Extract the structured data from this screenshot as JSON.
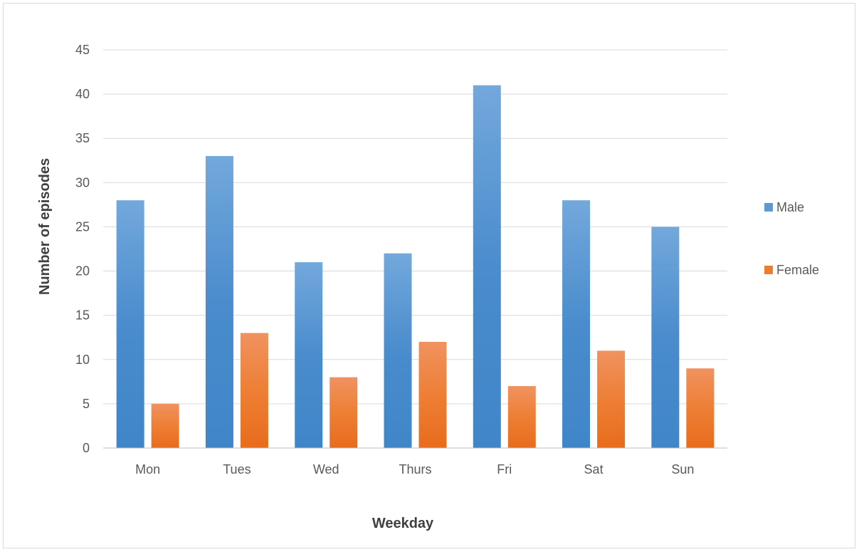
{
  "chart_data": {
    "type": "bar",
    "categories": [
      "Mon",
      "Tues",
      "Wed",
      "Thurs",
      "Fri",
      "Sat",
      "Sun"
    ],
    "series": [
      {
        "name": "Male",
        "values": [
          28,
          33,
          21,
          22,
          41,
          28,
          25
        ],
        "color": "#5b9bd5"
      },
      {
        "name": "Female",
        "values": [
          5,
          13,
          8,
          12,
          7,
          11,
          9
        ],
        "color": "#ed7d31"
      }
    ],
    "xlabel": "Weekday",
    "ylabel": "Number of episodes",
    "ylim": [
      0,
      45
    ],
    "yticks": [
      "0",
      "5",
      "10",
      "15",
      "20",
      "25",
      "30",
      "35",
      "40",
      "45"
    ],
    "grid": true,
    "legend": "right"
  }
}
